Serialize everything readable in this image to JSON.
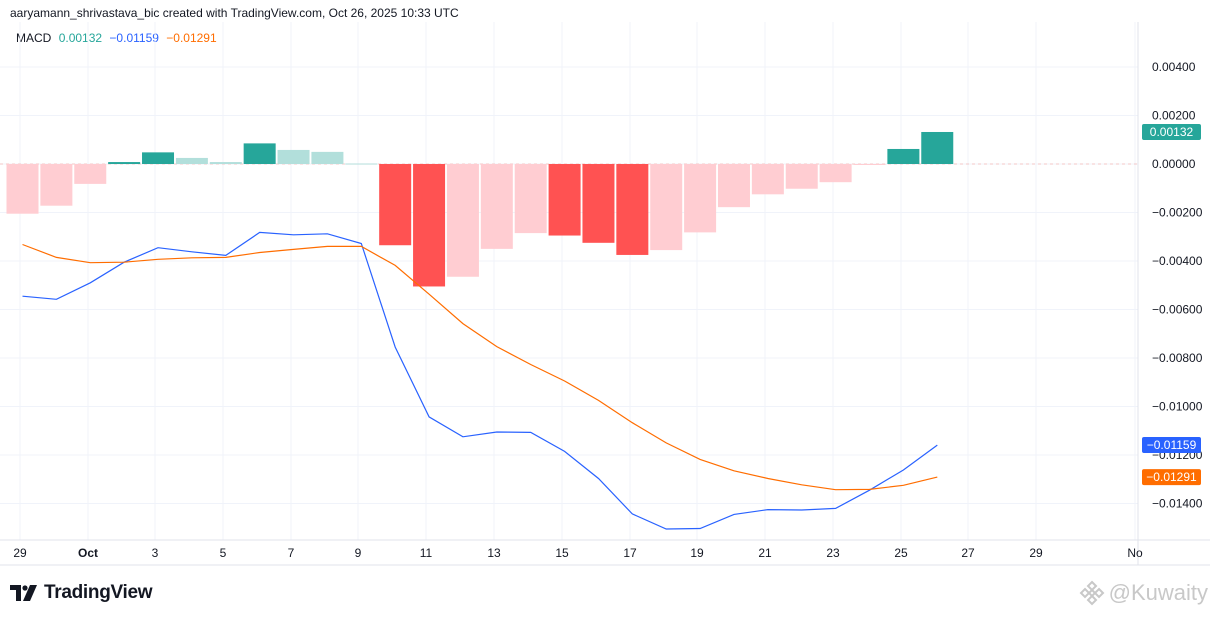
{
  "header": {
    "attribution": "aaryamann_shrivastava_bic created with TradingView.com, Oct 26, 2025 10:33 UTC"
  },
  "legend": {
    "name": "MACD",
    "hist_value": "0.00132",
    "macd_value": "−0.01159",
    "signal_value": "−0.01291"
  },
  "colors": {
    "hist_strong_up": "#26a69a",
    "hist_weak_up": "#b2dfdb",
    "hist_strong_down": "#ff5252",
    "hist_weak_down": "#ffcdd2",
    "macd_line": "#2962ff",
    "signal_line": "#ff6d00"
  },
  "branding": {
    "logo_text": "TradingView",
    "watermark": "@Kuwaity"
  },
  "chart_data": {
    "type": "line",
    "title": "MACD",
    "x_tick_labels": [
      "29",
      "Oct",
      "3",
      "5",
      "7",
      "9",
      "11",
      "13",
      "15",
      "17",
      "19",
      "21",
      "23",
      "25",
      "27",
      "29",
      "No"
    ],
    "y_tick_labels": [
      "0.00400",
      "0.00200",
      "0.00000",
      "−0.00200",
      "−0.00400",
      "−0.00600",
      "−0.00800",
      "−0.01000",
      "−0.01200",
      "−0.01400"
    ],
    "ylim": [
      -0.0152,
      0.0056
    ],
    "grid": true,
    "price_labels": [
      {
        "value": 0.00132,
        "text": "0.00132",
        "color": "#26a69a"
      },
      {
        "value": -0.01159,
        "text": "−0.01159",
        "color": "#2962ff"
      },
      {
        "value": -0.01291,
        "text": "−0.01291",
        "color": "#ff6d00"
      }
    ],
    "histogram": {
      "name": "Histogram",
      "values": [
        -0.00205,
        -0.00172,
        -0.00082,
        8e-05,
        0.00048,
        0.00025,
        8e-05,
        0.00085,
        0.00058,
        0.0005,
        2e-05,
        -0.00335,
        -0.00505,
        -0.00465,
        -0.0035,
        -0.00285,
        -0.00295,
        -0.00325,
        -0.00375,
        -0.00355,
        -0.00282,
        -0.00178,
        -0.00125,
        -0.00102,
        -0.00075,
        -3e-05,
        0.00062,
        0.00132
      ],
      "colors": [
        "hist_weak_down",
        "hist_weak_down",
        "hist_weak_down",
        "hist_strong_up",
        "hist_strong_up",
        "hist_weak_up",
        "hist_weak_up",
        "hist_strong_up",
        "hist_weak_up",
        "hist_weak_up",
        "hist_weak_up",
        "hist_strong_down",
        "hist_strong_down",
        "hist_weak_down",
        "hist_weak_down",
        "hist_weak_down",
        "hist_strong_down",
        "hist_strong_down",
        "hist_strong_down",
        "hist_weak_down",
        "hist_weak_down",
        "hist_weak_down",
        "hist_weak_down",
        "hist_weak_down",
        "hist_weak_down",
        "hist_weak_down",
        "hist_strong_up",
        "hist_strong_up"
      ]
    },
    "series": [
      {
        "name": "MACD",
        "color": "#2962ff",
        "values": [
          -0.00545,
          -0.00558,
          -0.0049,
          -0.00405,
          -0.00345,
          -0.00362,
          -0.00377,
          -0.00282,
          -0.00292,
          -0.00288,
          -0.00328,
          -0.00755,
          -0.01043,
          -0.01125,
          -0.01105,
          -0.01107,
          -0.01185,
          -0.01297,
          -0.01443,
          -0.01505,
          -0.01503,
          -0.01445,
          -0.01425,
          -0.01427,
          -0.0142,
          -0.01345,
          -0.01262,
          -0.01159
        ]
      },
      {
        "name": "Signal",
        "color": "#ff6d00",
        "values": [
          -0.00332,
          -0.00385,
          -0.00407,
          -0.00405,
          -0.00393,
          -0.00387,
          -0.00385,
          -0.00365,
          -0.00352,
          -0.0034,
          -0.0034,
          -0.00418,
          -0.00537,
          -0.00658,
          -0.00753,
          -0.00827,
          -0.00895,
          -0.00975,
          -0.01067,
          -0.0115,
          -0.01218,
          -0.01265,
          -0.01297,
          -0.01323,
          -0.01343,
          -0.01342,
          -0.01325,
          -0.01291
        ]
      }
    ]
  }
}
